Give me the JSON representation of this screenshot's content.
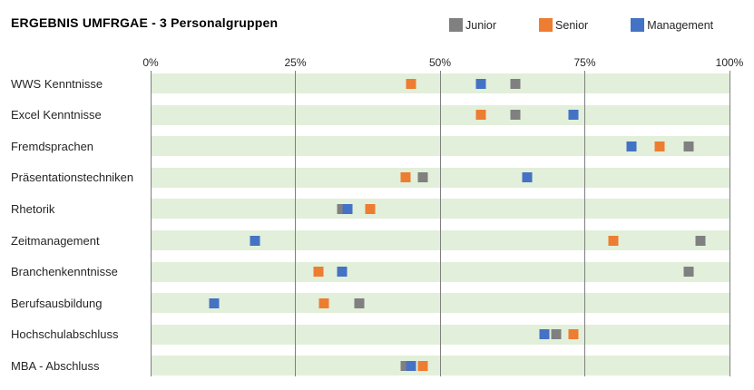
{
  "title": "ERGEBNIS UMFRGAE - 3 Personalgruppen",
  "legend": [
    {
      "label": "Junior",
      "color": "#808080"
    },
    {
      "label": "Senior",
      "color": "#ED7D31"
    },
    {
      "label": "Management",
      "color": "#4472C4"
    }
  ],
  "chart_data": {
    "type": "scatter",
    "title": "ERGEBNIS UMFRGAE - 3 Personalgruppen",
    "orientation": "horizontal category rows with percentage x-axis",
    "categories": [
      "WWS Kenntnisse",
      "Excel Kenntnisse",
      "Fremdsprachen",
      "Präsentationstechniken",
      "Rhetorik",
      "Zeitmanagement",
      "Branchenkenntnisse",
      "Berufsausbildung",
      "Hochschulabschluss",
      "MBA - Abschluss"
    ],
    "series": [
      {
        "name": "Junior",
        "color": "#808080",
        "values": [
          63,
          63,
          93,
          47,
          33,
          95,
          93,
          36,
          70,
          44
        ]
      },
      {
        "name": "Senior",
        "color": "#ED7D31",
        "values": [
          45,
          57,
          88,
          44,
          38,
          80,
          29,
          30,
          73,
          47
        ]
      },
      {
        "name": "Management",
        "color": "#4472C4",
        "values": [
          57,
          73,
          83,
          65,
          34,
          18,
          33,
          11,
          68,
          45
        ]
      }
    ],
    "x_ticks": [
      "0%",
      "25%",
      "50%",
      "75%",
      "100%"
    ],
    "x_tick_values": [
      0,
      25,
      50,
      75,
      100
    ],
    "xlim": [
      0,
      100
    ],
    "xlabel": "",
    "ylabel": "",
    "band_color": "#E2EFDA",
    "gridline_color": "#7f7f7f",
    "gridlines": true,
    "legend_position": "top-right",
    "marker_shape": "square"
  }
}
